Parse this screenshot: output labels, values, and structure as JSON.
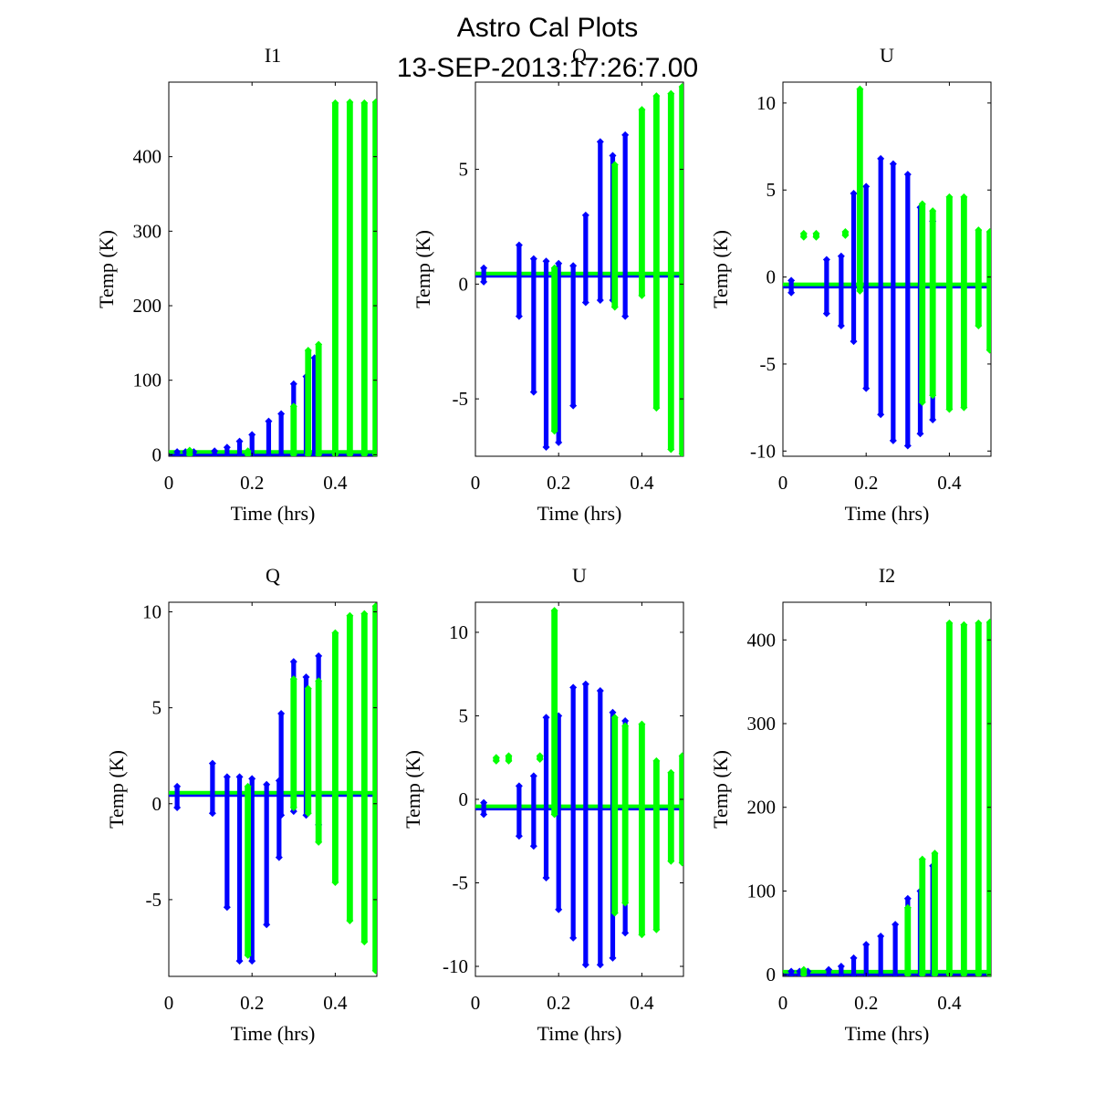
{
  "figure": {
    "title": "Astro Cal Plots",
    "subtitle": "13-SEP-2013:17:26:7.00"
  },
  "colors": {
    "series1": "#0000ff",
    "series2": "#00ff00",
    "axes": "#000000",
    "background": "#ffffff"
  },
  "chart_data": [
    {
      "type": "scatter",
      "title": "I1",
      "xlabel": "Time (hrs)",
      "ylabel": "Temp (K)",
      "xlim": [
        0,
        0.5
      ],
      "ylim": [
        -2,
        500
      ],
      "xticks": [
        0,
        0.2,
        0.4
      ],
      "xtick_labels": [
        "0",
        "0.2",
        "0.4"
      ],
      "yticks": [
        0,
        100,
        200,
        300,
        400
      ],
      "ytick_labels": [
        "0",
        "100",
        "200",
        "300",
        "400"
      ],
      "baseline": 2,
      "series": [
        {
          "name": "blue",
          "color": "#0000ff",
          "bursts": [
            {
              "x": 0.02,
              "min": 0,
              "max": 4
            },
            {
              "x": 0.04,
              "min": 0,
              "max": 4
            },
            {
              "x": 0.06,
              "min": 0,
              "max": 4
            },
            {
              "x": 0.11,
              "min": 0,
              "max": 5
            },
            {
              "x": 0.14,
              "min": 0,
              "max": 10
            },
            {
              "x": 0.17,
              "min": 0,
              "max": 18
            },
            {
              "x": 0.2,
              "min": 0,
              "max": 27
            },
            {
              "x": 0.24,
              "min": 0,
              "max": 45
            },
            {
              "x": 0.27,
              "min": 0,
              "max": 55
            },
            {
              "x": 0.3,
              "min": 0,
              "max": 95
            },
            {
              "x": 0.33,
              "min": 0,
              "max": 105
            },
            {
              "x": 0.35,
              "min": 0,
              "max": 130
            }
          ]
        },
        {
          "name": "green",
          "color": "#00ff00",
          "bursts": [
            {
              "x": 0.05,
              "min": 0,
              "max": 6
            },
            {
              "x": 0.19,
              "min": 0,
              "max": 5
            },
            {
              "x": 0.3,
              "min": 0,
              "max": 65
            },
            {
              "x": 0.335,
              "min": 0,
              "max": 140
            },
            {
              "x": 0.36,
              "min": 0,
              "max": 148
            },
            {
              "x": 0.4,
              "min": 0,
              "max": 472
            },
            {
              "x": 0.435,
              "min": 0,
              "max": 473
            },
            {
              "x": 0.47,
              "min": 0,
              "max": 472
            },
            {
              "x": 0.497,
              "min": 0,
              "max": 473
            }
          ]
        }
      ]
    },
    {
      "type": "scatter",
      "title": "Q",
      "xlabel": "Time (hrs)",
      "ylabel": "Temp (K)",
      "xlim": [
        0,
        0.5
      ],
      "ylim": [
        -7.5,
        8.8
      ],
      "xticks": [
        0,
        0.2,
        0.4
      ],
      "xtick_labels": [
        "0",
        "0.2",
        "0.4"
      ],
      "yticks": [
        -5,
        0,
        5
      ],
      "ytick_labels": [
        "-5",
        "0",
        "5"
      ],
      "baseline": 0.4,
      "series": [
        {
          "name": "blue",
          "color": "#0000ff",
          "bursts": [
            {
              "x": 0.02,
              "min": 0.1,
              "max": 0.7
            },
            {
              "x": 0.105,
              "min": -1.4,
              "max": 1.7
            },
            {
              "x": 0.14,
              "min": -4.7,
              "max": 1.1
            },
            {
              "x": 0.17,
              "min": -7.1,
              "max": 1.0
            },
            {
              "x": 0.2,
              "min": -6.9,
              "max": 0.9
            },
            {
              "x": 0.235,
              "min": -5.3,
              "max": 0.8
            },
            {
              "x": 0.265,
              "min": -0.8,
              "max": 3.0
            },
            {
              "x": 0.3,
              "min": -0.7,
              "max": 6.2
            },
            {
              "x": 0.33,
              "min": -0.7,
              "max": 5.6
            },
            {
              "x": 0.36,
              "min": -1.4,
              "max": 6.5
            }
          ]
        },
        {
          "name": "green",
          "color": "#00ff00",
          "bursts": [
            {
              "x": 0.19,
              "min": -6.4,
              "max": 0.7
            },
            {
              "x": 0.335,
              "min": -1.0,
              "max": 5.2
            },
            {
              "x": 0.4,
              "min": -0.5,
              "max": 7.6
            },
            {
              "x": 0.435,
              "min": -5.4,
              "max": 8.2
            },
            {
              "x": 0.47,
              "min": -7.2,
              "max": 8.3
            },
            {
              "x": 0.497,
              "min": -7.4,
              "max": 8.6
            }
          ]
        }
      ]
    },
    {
      "type": "scatter",
      "title": "U",
      "xlabel": "Time (hrs)",
      "ylabel": "Temp (K)",
      "xlim": [
        0,
        0.5
      ],
      "ylim": [
        -10.3,
        11.2
      ],
      "xticks": [
        0,
        0.2,
        0.4
      ],
      "xtick_labels": [
        "0",
        "0.2",
        "0.4"
      ],
      "yticks": [
        -10,
        -5,
        0,
        5,
        10
      ],
      "ytick_labels": [
        "-10",
        "-5",
        "0",
        "5",
        "10"
      ],
      "baseline": -0.5,
      "series": [
        {
          "name": "blue",
          "color": "#0000ff",
          "bursts": [
            {
              "x": 0.02,
              "min": -0.9,
              "max": -0.2
            },
            {
              "x": 0.105,
              "min": -2.1,
              "max": 1.0
            },
            {
              "x": 0.14,
              "min": -2.8,
              "max": 1.2
            },
            {
              "x": 0.17,
              "min": -3.7,
              "max": 4.8
            },
            {
              "x": 0.2,
              "min": -6.4,
              "max": 5.2
            },
            {
              "x": 0.235,
              "min": -7.9,
              "max": 6.8
            },
            {
              "x": 0.265,
              "min": -9.4,
              "max": 6.5
            },
            {
              "x": 0.3,
              "min": -9.7,
              "max": 5.9
            },
            {
              "x": 0.33,
              "min": -9.0,
              "max": 4.0
            },
            {
              "x": 0.36,
              "min": -8.2,
              "max": 3.2
            }
          ]
        },
        {
          "name": "green",
          "color": "#00ff00",
          "bursts": [
            {
              "x": 0.05,
              "min": 2.3,
              "max": 2.5
            },
            {
              "x": 0.08,
              "min": 2.3,
              "max": 2.5
            },
            {
              "x": 0.15,
              "min": 2.4,
              "max": 2.6
            },
            {
              "x": 0.185,
              "min": -0.8,
              "max": 10.8
            },
            {
              "x": 0.335,
              "min": -7.2,
              "max": 4.2
            },
            {
              "x": 0.36,
              "min": -6.8,
              "max": 3.8
            },
            {
              "x": 0.4,
              "min": -7.6,
              "max": 4.6
            },
            {
              "x": 0.435,
              "min": -7.5,
              "max": 4.6
            },
            {
              "x": 0.47,
              "min": -2.8,
              "max": 2.7
            },
            {
              "x": 0.497,
              "min": -4.2,
              "max": 2.6
            }
          ]
        }
      ]
    },
    {
      "type": "scatter",
      "title": "Q",
      "xlabel": "Time (hrs)",
      "ylabel": "Temp (K)",
      "xlim": [
        0,
        0.5
      ],
      "ylim": [
        -9.0,
        10.5
      ],
      "xticks": [
        0,
        0.2,
        0.4
      ],
      "xtick_labels": [
        "0",
        "0.2",
        "0.4"
      ],
      "yticks": [
        -5,
        0,
        5,
        10
      ],
      "ytick_labels": [
        "-5",
        "0",
        "5",
        "10"
      ],
      "baseline": 0.5,
      "series": [
        {
          "name": "blue",
          "color": "#0000ff",
          "bursts": [
            {
              "x": 0.02,
              "min": -0.2,
              "max": 0.9
            },
            {
              "x": 0.105,
              "min": -0.5,
              "max": 2.1
            },
            {
              "x": 0.14,
              "min": -5.4,
              "max": 1.4
            },
            {
              "x": 0.17,
              "min": -8.2,
              "max": 1.4
            },
            {
              "x": 0.2,
              "min": -8.2,
              "max": 1.3
            },
            {
              "x": 0.235,
              "min": -6.3,
              "max": 1.0
            },
            {
              "x": 0.265,
              "min": -2.8,
              "max": 1.2
            },
            {
              "x": 0.27,
              "min": -0.6,
              "max": 4.7
            },
            {
              "x": 0.3,
              "min": -0.4,
              "max": 7.4
            },
            {
              "x": 0.33,
              "min": -0.6,
              "max": 6.6
            },
            {
              "x": 0.36,
              "min": -1.1,
              "max": 7.7
            }
          ]
        },
        {
          "name": "green",
          "color": "#00ff00",
          "bursts": [
            {
              "x": 0.19,
              "min": -7.9,
              "max": 0.9
            },
            {
              "x": 0.3,
              "min": -0.2,
              "max": 6.5
            },
            {
              "x": 0.335,
              "min": -0.5,
              "max": 6.0
            },
            {
              "x": 0.36,
              "min": -2.0,
              "max": 6.4
            },
            {
              "x": 0.4,
              "min": -4.1,
              "max": 8.9
            },
            {
              "x": 0.435,
              "min": -6.1,
              "max": 9.8
            },
            {
              "x": 0.47,
              "min": -7.2,
              "max": 9.9
            },
            {
              "x": 0.497,
              "min": -8.7,
              "max": 10.3
            }
          ]
        }
      ]
    },
    {
      "type": "scatter",
      "title": "U",
      "xlabel": "Time (hrs)",
      "ylabel": "Temp (K)",
      "xlim": [
        0,
        0.5
      ],
      "ylim": [
        -10.6,
        11.8
      ],
      "xticks": [
        0,
        0.2,
        0.4
      ],
      "xtick_labels": [
        "0",
        "0.2",
        "0.4"
      ],
      "yticks": [
        -10,
        -5,
        0,
        5,
        10
      ],
      "ytick_labels": [
        "-10",
        "-5",
        "0",
        "5",
        "10"
      ],
      "baseline": -0.5,
      "series": [
        {
          "name": "blue",
          "color": "#0000ff",
          "bursts": [
            {
              "x": 0.02,
              "min": -0.9,
              "max": -0.2
            },
            {
              "x": 0.105,
              "min": -2.2,
              "max": 0.8
            },
            {
              "x": 0.14,
              "min": -2.8,
              "max": 1.4
            },
            {
              "x": 0.17,
              "min": -4.7,
              "max": 4.9
            },
            {
              "x": 0.2,
              "min": -6.6,
              "max": 5.0
            },
            {
              "x": 0.235,
              "min": -8.3,
              "max": 6.7
            },
            {
              "x": 0.265,
              "min": -9.9,
              "max": 6.9
            },
            {
              "x": 0.3,
              "min": -9.9,
              "max": 6.5
            },
            {
              "x": 0.33,
              "min": -9.5,
              "max": 5.2
            },
            {
              "x": 0.36,
              "min": -8.0,
              "max": 4.7
            }
          ]
        },
        {
          "name": "green",
          "color": "#00ff00",
          "bursts": [
            {
              "x": 0.05,
              "min": 2.3,
              "max": 2.5
            },
            {
              "x": 0.08,
              "min": 2.3,
              "max": 2.6
            },
            {
              "x": 0.155,
              "min": 2.4,
              "max": 2.6
            },
            {
              "x": 0.19,
              "min": -0.9,
              "max": 11.3
            },
            {
              "x": 0.335,
              "min": -6.8,
              "max": 4.9
            },
            {
              "x": 0.36,
              "min": -6.2,
              "max": 4.4
            },
            {
              "x": 0.4,
              "min": -8.1,
              "max": 4.5
            },
            {
              "x": 0.435,
              "min": -7.8,
              "max": 2.3
            },
            {
              "x": 0.47,
              "min": -3.7,
              "max": 1.6
            },
            {
              "x": 0.497,
              "min": -3.8,
              "max": 2.6
            }
          ]
        }
      ]
    },
    {
      "type": "scatter",
      "title": "I2",
      "xlabel": "Time (hrs)",
      "ylabel": "Temp (K)",
      "xlim": [
        0,
        0.5
      ],
      "ylim": [
        -2,
        445
      ],
      "xticks": [
        0,
        0.2,
        0.4
      ],
      "xtick_labels": [
        "0",
        "0.2",
        "0.4"
      ],
      "yticks": [
        0,
        100,
        200,
        300,
        400
      ],
      "ytick_labels": [
        "0",
        "100",
        "200",
        "300",
        "400"
      ],
      "baseline": 2,
      "series": [
        {
          "name": "blue",
          "color": "#0000ff",
          "bursts": [
            {
              "x": 0.02,
              "min": 0,
              "max": 4
            },
            {
              "x": 0.04,
              "min": 0,
              "max": 4
            },
            {
              "x": 0.06,
              "min": 0,
              "max": 4
            },
            {
              "x": 0.11,
              "min": 0,
              "max": 6
            },
            {
              "x": 0.14,
              "min": 0,
              "max": 10
            },
            {
              "x": 0.17,
              "min": 0,
              "max": 20
            },
            {
              "x": 0.2,
              "min": 0,
              "max": 36
            },
            {
              "x": 0.235,
              "min": 0,
              "max": 46
            },
            {
              "x": 0.27,
              "min": 0,
              "max": 60
            },
            {
              "x": 0.3,
              "min": 0,
              "max": 91
            },
            {
              "x": 0.33,
              "min": 0,
              "max": 100
            },
            {
              "x": 0.36,
              "min": 0,
              "max": 130
            }
          ]
        },
        {
          "name": "green",
          "color": "#00ff00",
          "bursts": [
            {
              "x": 0.05,
              "min": 0,
              "max": 6
            },
            {
              "x": 0.3,
              "min": 0,
              "max": 80
            },
            {
              "x": 0.335,
              "min": 0,
              "max": 138
            },
            {
              "x": 0.365,
              "min": 0,
              "max": 145
            },
            {
              "x": 0.4,
              "min": 0,
              "max": 420
            },
            {
              "x": 0.435,
              "min": 0,
              "max": 418
            },
            {
              "x": 0.47,
              "min": 0,
              "max": 420
            },
            {
              "x": 0.497,
              "min": 0,
              "max": 421
            }
          ]
        }
      ]
    }
  ]
}
